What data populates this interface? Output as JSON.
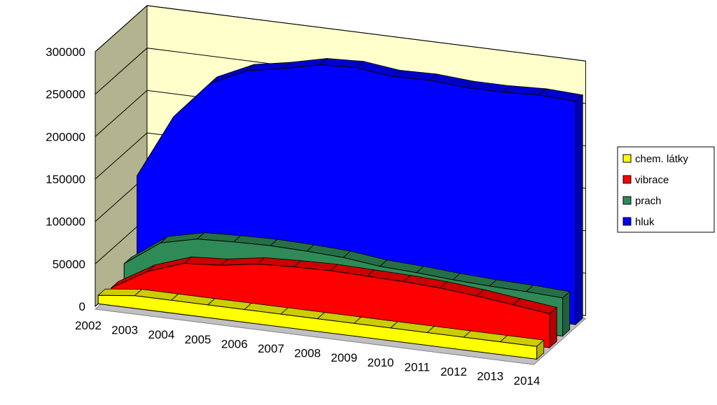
{
  "chart_data": {
    "type": "area",
    "style": "3d-stacked-depth",
    "title": "",
    "xlabel": "",
    "ylabel": "",
    "ylim": [
      0,
      300000
    ],
    "yticks": [
      "0",
      "50000",
      "100000",
      "150000",
      "200000",
      "250000",
      "300000"
    ],
    "categories": [
      "2002",
      "2003",
      "2004",
      "2005",
      "2006",
      "2007",
      "2008",
      "2009",
      "2010",
      "2011",
      "2012",
      "2013",
      "2014"
    ],
    "series": [
      {
        "name": "chem. látky",
        "color": "#ffff00",
        "values": [
          10000,
          15000,
          15000,
          15000,
          15000,
          15000,
          15000,
          15000,
          15000,
          15000,
          15000,
          15000,
          15000
        ]
      },
      {
        "name": "vibrace",
        "color": "#ff0000",
        "values": [
          5000,
          30000,
          45000,
          48000,
          55000,
          57000,
          58000,
          57000,
          56000,
          54000,
          50000,
          45000,
          40000
        ]
      },
      {
        "name": "prach",
        "color": "#2e8b57",
        "values": [
          20000,
          50000,
          60000,
          62000,
          63000,
          62000,
          60000,
          55000,
          53000,
          50000,
          48000,
          47000,
          45000
        ]
      },
      {
        "name": "hluk",
        "color": "#0000ff",
        "values": [
          110000,
          185000,
          230000,
          250000,
          258000,
          268000,
          270000,
          265000,
          266000,
          263000,
          263000,
          265000,
          263000
        ]
      }
    ],
    "grid": true,
    "legend_position": "right"
  }
}
